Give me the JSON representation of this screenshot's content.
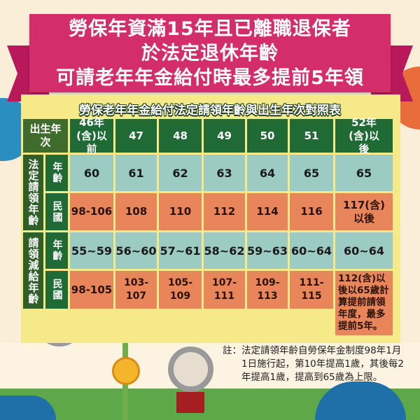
{
  "title_lines": [
    "勞保年資滿15年且已離職退保者",
    "於法定退休年齡",
    "可請老年年金給付時最多提前5年領"
  ],
  "subtitle": "勞保老年年金給付法定請領年齡與出生年次對照表",
  "table": {
    "corner": "出生年次",
    "birth_years": [
      "46年(含)以前",
      "47",
      "48",
      "49",
      "50",
      "51",
      "52年(含)以後"
    ],
    "groups": [
      {
        "label": "法定請領年齡",
        "rows": [
          {
            "label": "年齡",
            "values": [
              "60",
              "61",
              "62",
              "63",
              "64",
              "65",
              "65"
            ]
          },
          {
            "label": "民國",
            "values": [
              "98-106",
              "108",
              "110",
              "112",
              "114",
              "116",
              "117(含)以後"
            ]
          }
        ]
      },
      {
        "label": "請領減給年齡",
        "rows": [
          {
            "label": "年齡",
            "values": [
              "55~59",
              "56~60",
              "57~61",
              "58~62",
              "59~63",
              "60~64",
              "60~64"
            ]
          },
          {
            "label": "民國",
            "values": [
              "98-105",
              "103-107",
              "105-109",
              "107-111",
              "109-113",
              "111-115",
              "112(含)以後以65歲計算提前請領年度，最多提前5年。"
            ]
          }
        ]
      }
    ]
  },
  "note": "註：法定請領年齡自勞保年金制度98年1月1日施行起，第10年提高1歲，其後每2年提高1歲，提高到65歲為上限。",
  "colors": {
    "ribbon": "#d42d6c",
    "header": "#1f6a35",
    "teal": "#9ccbc4",
    "orange": "#e8855a",
    "panel": "#f6e98a",
    "ground": "#5fa84a"
  }
}
